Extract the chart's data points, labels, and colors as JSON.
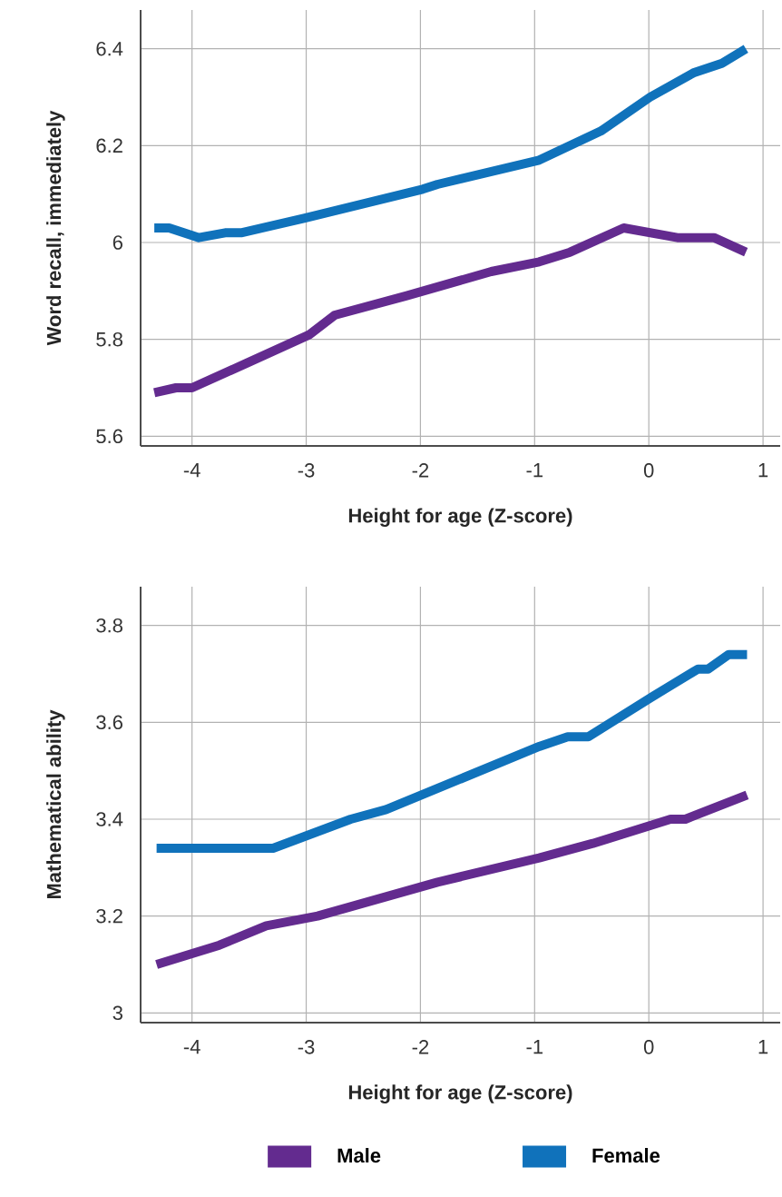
{
  "chart_data": [
    {
      "type": "line",
      "xlabel": "Height for age (Z-score)",
      "ylabel": "Word recall, immediately",
      "xlim": [
        -4.45,
        1.15
      ],
      "ylim": [
        5.58,
        6.48
      ],
      "xticks": [
        -4,
        -3,
        -2,
        -1,
        0,
        1
      ],
      "yticks": [
        5.6,
        5.8,
        6,
        6.2,
        6.4
      ],
      "grid": true,
      "line_style": "solid",
      "series": [
        {
          "color": "#632b8f",
          "x": [
            -4.33,
            -4.14,
            -4.0,
            -3.53,
            -2.97,
            -2.75,
            -2.12,
            -1.38,
            -0.96,
            -0.69,
            -0.22,
            0.25,
            0.57,
            0.85
          ],
          "values": [
            5.69,
            5.7,
            5.7,
            5.75,
            5.81,
            5.85,
            5.89,
            5.94,
            5.96,
            5.98,
            6.03,
            6.01,
            6.01,
            5.98
          ]
        },
        {
          "color": "#1072bb",
          "x": [
            -4.33,
            -4.2,
            -3.94,
            -3.71,
            -3.57,
            -3.02,
            -1.98,
            -1.85,
            -0.96,
            -0.42,
            0.01,
            0.39,
            0.64,
            0.85
          ],
          "values": [
            6.03,
            6.03,
            6.01,
            6.02,
            6.02,
            6.05,
            6.11,
            6.12,
            6.17,
            6.23,
            6.3,
            6.35,
            6.37,
            6.4
          ]
        }
      ]
    },
    {
      "type": "line",
      "xlabel": "Height for age (Z-score)",
      "ylabel": "Mathematical ability",
      "xlim": [
        -4.45,
        1.15
      ],
      "ylim": [
        2.98,
        3.88
      ],
      "xticks": [
        -4,
        -3,
        -2,
        -1,
        0,
        1
      ],
      "yticks": [
        3,
        3.2,
        3.4,
        3.6,
        3.8
      ],
      "grid": true,
      "line_style": "solid",
      "legend": "bottom",
      "series": [
        {
          "name": "Male",
          "color": "#632b8f",
          "x": [
            -4.31,
            -3.76,
            -3.35,
            -2.9,
            -1.85,
            -0.96,
            -0.49,
            0.19,
            0.32,
            0.86
          ],
          "values": [
            3.1,
            3.14,
            3.18,
            3.2,
            3.27,
            3.32,
            3.35,
            3.4,
            3.4,
            3.45
          ]
        },
        {
          "name": "Female",
          "color": "#1072bb",
          "x": [
            -4.31,
            -3.29,
            -2.61,
            -2.3,
            -0.96,
            -0.71,
            -0.53,
            0.01,
            0.43,
            0.52,
            0.7,
            0.86
          ],
          "values": [
            3.34,
            3.34,
            3.4,
            3.42,
            3.55,
            3.57,
            3.57,
            3.65,
            3.71,
            3.71,
            3.74,
            3.74
          ]
        }
      ]
    }
  ]
}
